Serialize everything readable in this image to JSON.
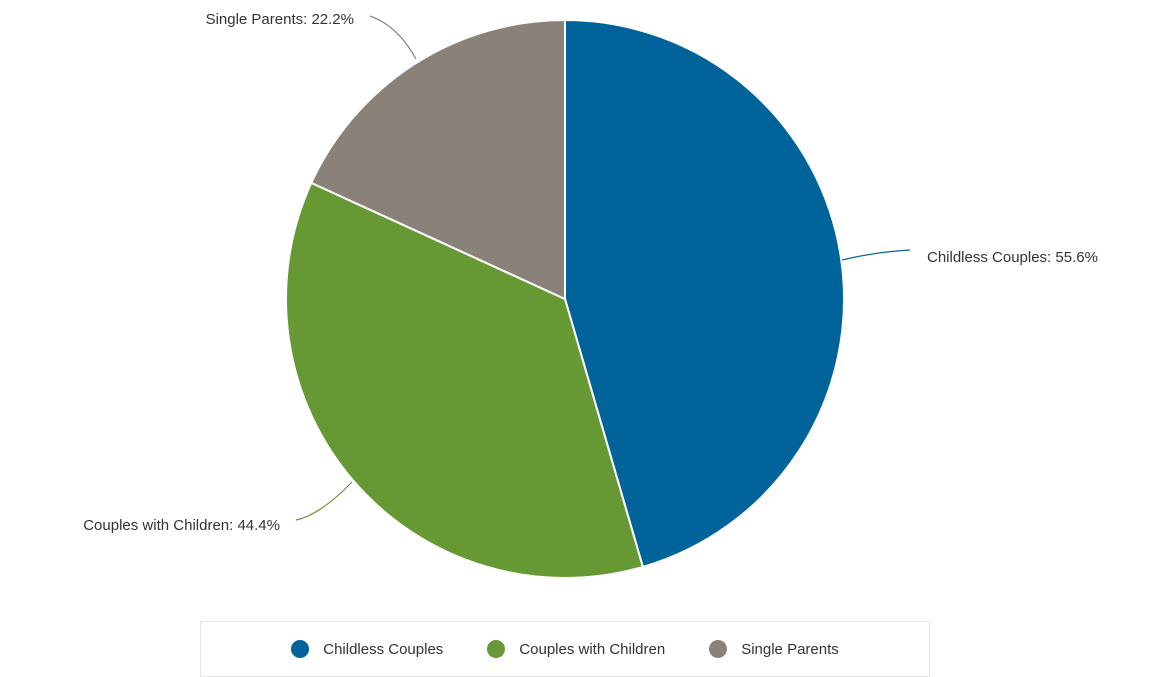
{
  "chart_data": {
    "type": "pie",
    "title": "",
    "slices": [
      {
        "name": "Childless Couples",
        "value": 55.6,
        "label": "Childless Couples: 55.6%",
        "color": "#00639a"
      },
      {
        "name": "Couples with Children",
        "value": 44.4,
        "label": "Couples with Children: 44.4%",
        "color": "#669933"
      },
      {
        "name": "Single Parents",
        "value": 22.2,
        "label": "Single Parents: 22.2%",
        "color": "#8a8179"
      }
    ],
    "legend": {
      "position": "bottom",
      "items": [
        {
          "label": "Childless Couples",
          "color": "#00639a"
        },
        {
          "label": "Couples with Children",
          "color": "#669933"
        },
        {
          "label": "Single Parents",
          "color": "#8a8179"
        }
      ]
    }
  }
}
